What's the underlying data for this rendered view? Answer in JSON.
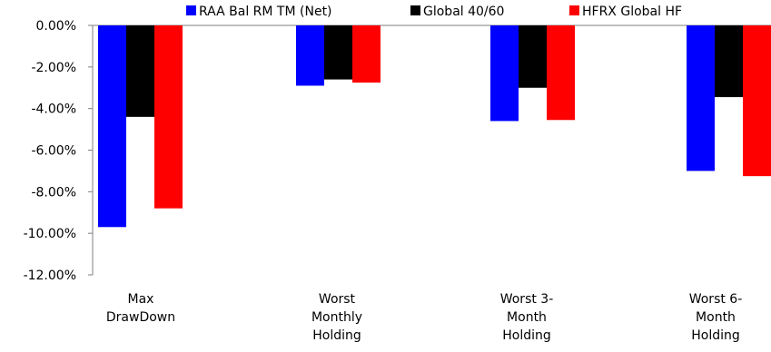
{
  "chart_data": {
    "type": "bar",
    "categories": [
      [
        "Max",
        "DrawDown"
      ],
      [
        "Worst",
        "Monthly",
        "Holding"
      ],
      [
        "Worst 3-",
        "Month",
        "Holding"
      ],
      [
        "Worst 6-",
        "Month",
        "Holding"
      ]
    ],
    "series": [
      {
        "name": "RAA Bal RM TM (Net)",
        "color": "#0000ff",
        "values": [
          -9.7,
          -2.9,
          -4.6,
          -7.0
        ]
      },
      {
        "name": "Global 40/60",
        "color": "#000000",
        "values": [
          -4.4,
          -2.6,
          -3.0,
          -3.45
        ]
      },
      {
        "name": "HFRX Global HF",
        "color": "#ff0000",
        "values": [
          -8.8,
          -2.75,
          -4.55,
          -7.25
        ]
      }
    ],
    "y_ticks": [
      "0.00%",
      "-2.00%",
      "-4.00%",
      "-6.00%",
      "-8.00%",
      "-10.00%",
      "-12.00%"
    ],
    "ylim": [
      -12,
      0
    ],
    "grid": false,
    "legend_position": "top",
    "title": "",
    "xlabel": "",
    "ylabel": ""
  }
}
